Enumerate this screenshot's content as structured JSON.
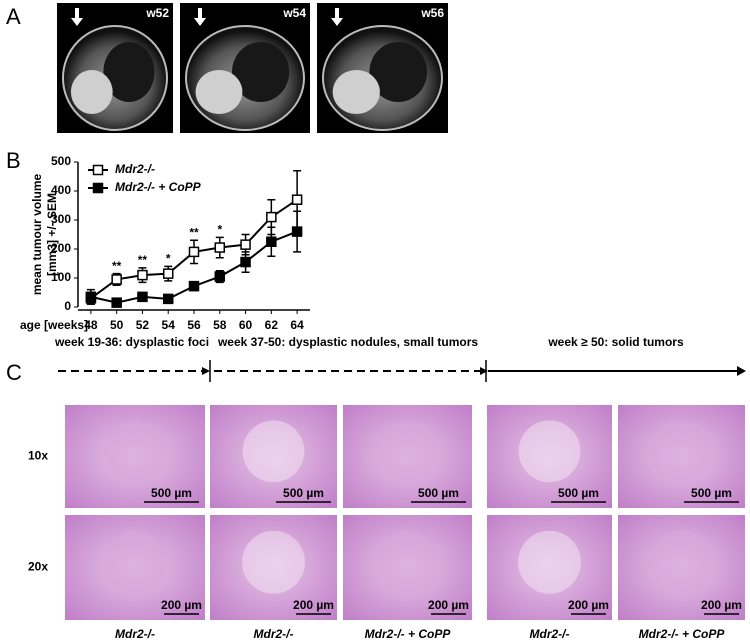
{
  "panel_a": {
    "label": "A",
    "images": [
      "w52",
      "w54",
      "w56"
    ]
  },
  "chart_data": {
    "type": "line",
    "label": "B",
    "y_label": [
      "mean tumour volume",
      "[mm3] +/- SEM"
    ],
    "x_label": "age [weeks]",
    "x": [
      48,
      50,
      52,
      54,
      56,
      58,
      60,
      62,
      64
    ],
    "xlim": [
      47,
      65
    ],
    "xticks": [
      48,
      50,
      52,
      54,
      56,
      58,
      60,
      62,
      64
    ],
    "ylim": [
      0,
      500
    ],
    "yticks": [
      0,
      100,
      200,
      300,
      400,
      500
    ],
    "series": [
      {
        "name": "Mdr2-/-",
        "color": "#000000",
        "marker": "open-square",
        "values": [
          30,
          95,
          110,
          115,
          190,
          205,
          215,
          310,
          370
        ],
        "errors": [
          20,
          20,
          25,
          25,
          40,
          35,
          35,
          60,
          100
        ]
      },
      {
        "name": "Mdr2-/- + CoPP",
        "color": "#000000",
        "marker": "filled-square",
        "values": [
          35,
          15,
          35,
          28,
          72,
          105,
          155,
          225,
          260
        ],
        "errors": [
          25,
          8,
          8,
          8,
          15,
          20,
          35,
          50,
          70
        ]
      }
    ],
    "annotations": [
      {
        "x": 50,
        "text": "**"
      },
      {
        "x": 52,
        "text": "**"
      },
      {
        "x": 54,
        "text": "*"
      },
      {
        "x": 56,
        "text": "**"
      },
      {
        "x": 58,
        "text": "*"
      }
    ]
  },
  "panel_c": {
    "label": "C",
    "timeline": [
      "week 19-36: dysplastic foci",
      "week 37-50: dysplastic nodules, small tumors",
      "week ≥ 50: solid tumors"
    ],
    "rows": [
      {
        "label": "10x",
        "scale": "500 µm"
      },
      {
        "label": "20x",
        "scale": "200 µm"
      }
    ],
    "columns": [
      "Mdr2-/-",
      "Mdr2-/-",
      "Mdr2-/- + CoPP",
      "Mdr2-/-",
      "Mdr2-/- + CoPP"
    ]
  }
}
